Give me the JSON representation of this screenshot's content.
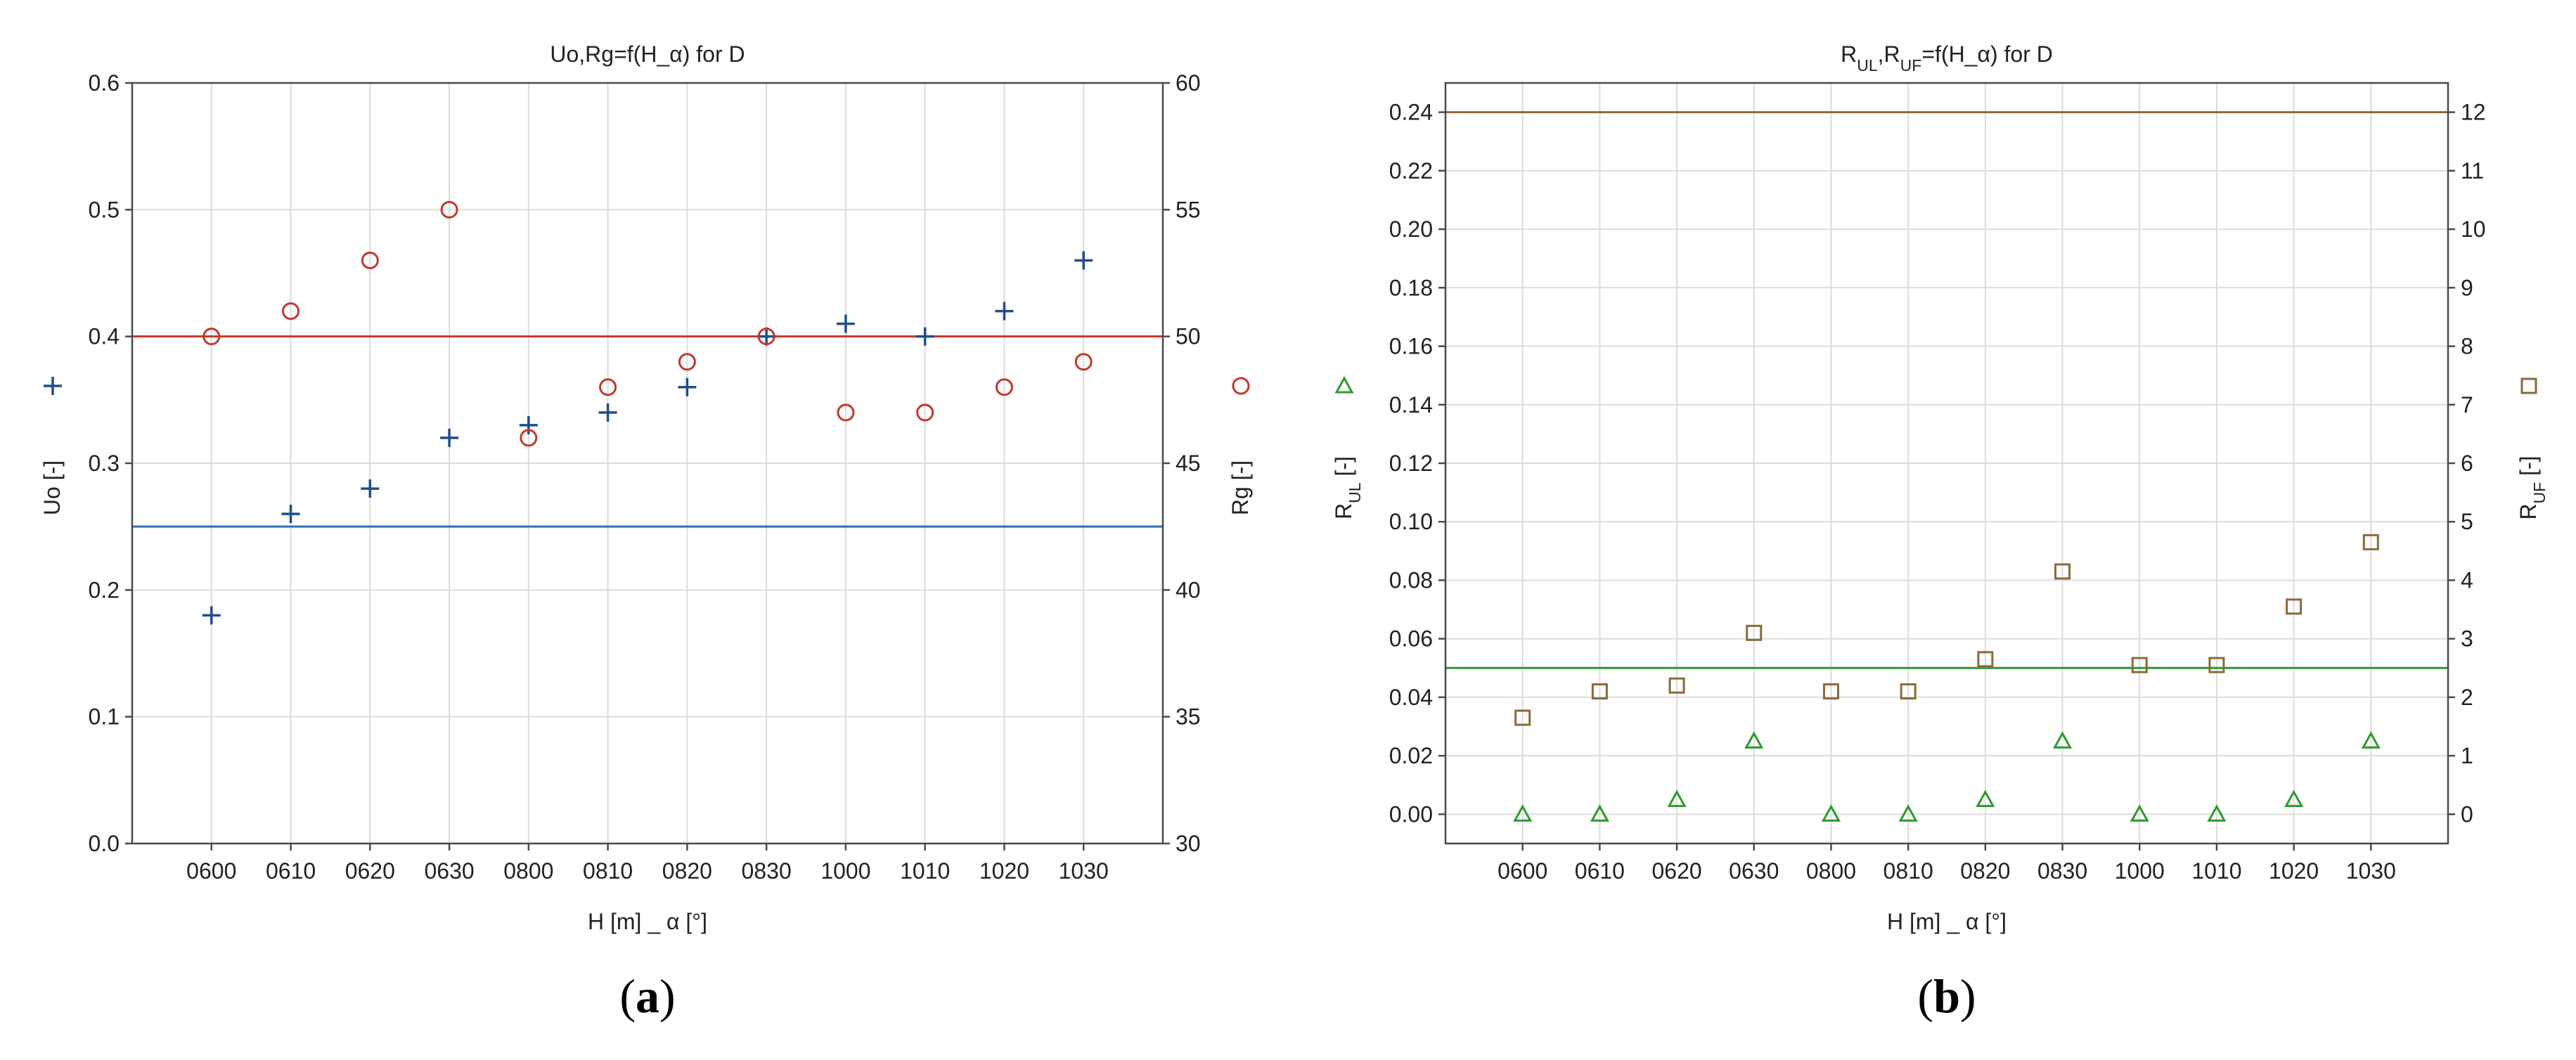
{
  "panels": [
    {
      "label": "a",
      "title": "Uo,Rg=f(H_α) for D",
      "xlabel": "H [m] _ α [°]",
      "ylabel_left": "Uo [-]",
      "ylabel_right": "Rg [-]",
      "left_marker": "+",
      "right_marker": "o"
    },
    {
      "label": "b",
      "title_parts": [
        "R",
        "UL",
        ",R",
        "UF",
        "=f(H_α) for D"
      ],
      "xlabel": "H [m] _ α [°]",
      "ylabel_left_parts": [
        "R",
        "UL",
        " [-]"
      ],
      "ylabel_right_parts": [
        "R",
        "UF",
        " [-]"
      ],
      "left_marker": "triangle",
      "right_marker": "square"
    }
  ],
  "chart_data": [
    {
      "type": "scatter",
      "title": "Uo,Rg=f(H_α) for D",
      "xlabel": "H [m] _ α [°]",
      "ylabel": "Uo [-]",
      "y2label": "Rg [-]",
      "categories": [
        "0600",
        "0610",
        "0620",
        "0630",
        "0800",
        "0810",
        "0820",
        "0830",
        "1000",
        "1010",
        "1020",
        "1030"
      ],
      "ylim": [
        0,
        0.6
      ],
      "y2lim": [
        30,
        60
      ],
      "yticks": [
        "0.0",
        "0.1",
        "0.2",
        "0.3",
        "0.4",
        "0.5",
        "0.6"
      ],
      "y2ticks": [
        "30",
        "35",
        "40",
        "45",
        "50",
        "55",
        "60"
      ],
      "grid": true,
      "series": [
        {
          "name": "Uo",
          "axis": "left",
          "marker": "plus",
          "color": "#1f4e8c",
          "values": [
            0.18,
            0.26,
            0.28,
            0.32,
            0.33,
            0.34,
            0.36,
            0.4,
            0.41,
            0.4,
            0.42,
            0.46
          ]
        },
        {
          "name": "Rg",
          "axis": "right",
          "marker": "circle",
          "color": "#c0392b",
          "values": [
            50,
            51,
            53,
            55,
            46,
            48,
            49,
            50,
            47,
            47,
            48,
            49
          ]
        }
      ],
      "reference_lines": [
        {
          "axis": "left",
          "value": 0.25,
          "color": "#2e6fb5"
        },
        {
          "axis": "left",
          "value": 0.4,
          "color": "#c0392b"
        }
      ]
    },
    {
      "type": "scatter",
      "title": "RUL,RUF=f(H_α) for D",
      "xlabel": "H [m] _ α [°]",
      "ylabel": "RUL [-]",
      "y2label": "RUF [-]",
      "categories": [
        "0600",
        "0610",
        "0620",
        "0630",
        "0800",
        "0810",
        "0820",
        "0830",
        "1000",
        "1010",
        "1020",
        "1030"
      ],
      "ylim": [
        -0.01,
        0.25
      ],
      "y2lim": [
        -0.5,
        12.5
      ],
      "yticks": [
        "0.00",
        "0.02",
        "0.04",
        "0.06",
        "0.08",
        "0.10",
        "0.12",
        "0.14",
        "0.16",
        "0.18",
        "0.20",
        "0.22",
        "0.24"
      ],
      "y2ticks": [
        "0",
        "1",
        "2",
        "3",
        "4",
        "5",
        "6",
        "7",
        "8",
        "9",
        "10",
        "11",
        "12"
      ],
      "grid": true,
      "series": [
        {
          "name": "RUL",
          "axis": "left",
          "marker": "triangle",
          "color": "#2e9a2e",
          "values": [
            0.0,
            0.0,
            0.005,
            0.025,
            0.0,
            0.0,
            0.005,
            0.025,
            0.0,
            0.0,
            0.005,
            0.025
          ]
        },
        {
          "name": "RUF",
          "axis": "right",
          "marker": "square",
          "color": "#8a6a3a",
          "values": [
            1.65,
            2.1,
            2.2,
            3.1,
            2.1,
            2.1,
            2.65,
            4.15,
            2.55,
            2.55,
            3.55,
            4.65
          ]
        }
      ],
      "reference_lines": [
        {
          "axis": "left",
          "value": 0.05,
          "color": "#2e9a2e"
        },
        {
          "axis": "left",
          "value": 0.24,
          "color": "#8a6a3a"
        }
      ]
    }
  ]
}
